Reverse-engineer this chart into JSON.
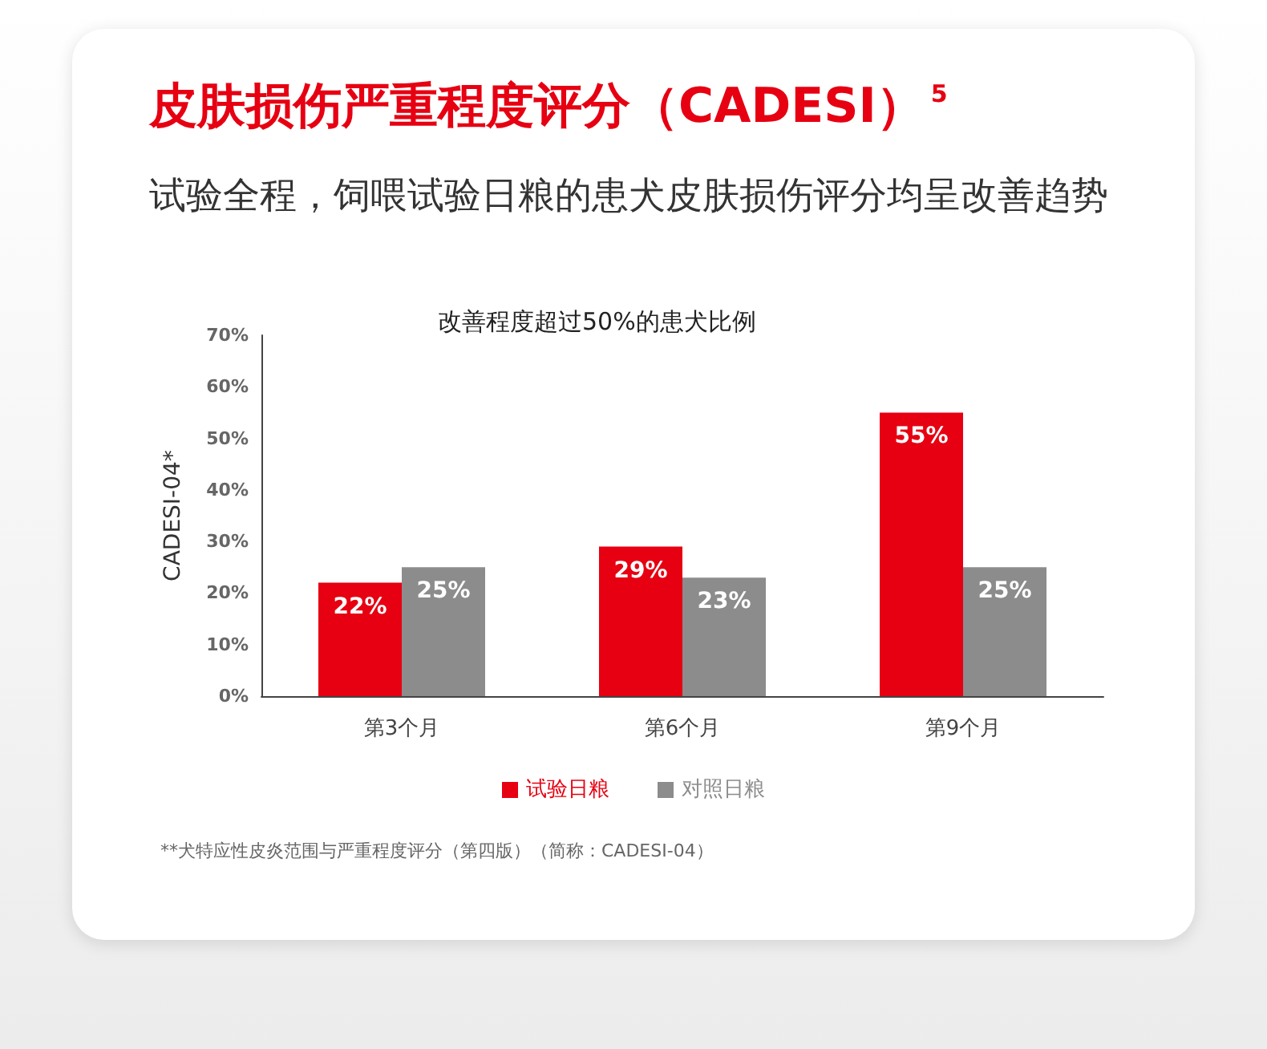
{
  "chart_data": {
    "type": "bar",
    "title": "皮肤损伤严重程度评分（CADESI）$^{5}$",
    "subtitle": "试验全程，饲喂试验日粮的患犬皮肤损伤评分均呈改善趋势",
    "annotations": [
      "改善程度超过50%的患犬比例",
      "**犬特应性皮炎范围与严重程度评分（第四版）（简称：CADESI-04）"
    ],
    "ylabel": "CADESI-04*",
    "categories": [
      "第3个月",
      "第6个月",
      "第9个月"
    ],
    "series": [
      {
        "name": "试验日粮",
        "color": "#e60012",
        "values": [
          22,
          29,
          55
        ],
        "value_labels": [
          "22%",
          "29%",
          "55%"
        ]
      },
      {
        "name": "对照日粮",
        "color": "#8c8c8c",
        "values": [
          25,
          23,
          25
        ],
        "value_labels": [
          "25%",
          "23%",
          "25%"
        ]
      }
    ],
    "ylim": [
      0,
      70
    ],
    "yticks": [
      {
        "value": 0,
        "label": "0%"
      },
      {
        "value": 10,
        "label": "10%"
      },
      {
        "value": 20,
        "label": "20%"
      },
      {
        "value": 30,
        "label": "30%"
      },
      {
        "value": 40,
        "label": "40%"
      },
      {
        "value": 50,
        "label": "50%"
      },
      {
        "value": 60,
        "label": "60%"
      },
      {
        "value": 70,
        "label": "70%"
      }
    ],
    "grid": false,
    "legend": "bottom"
  }
}
